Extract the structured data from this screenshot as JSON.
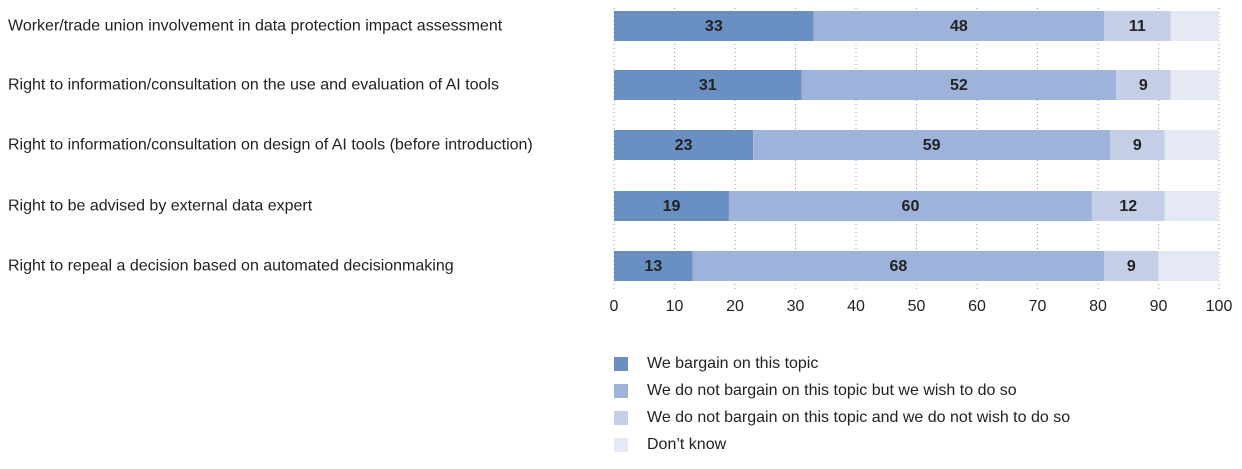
{
  "chart_data": {
    "type": "stacked-bar-horizontal",
    "categories": [
      "Worker/trade union involvement in data protection impact assessment",
      "Right to information/consultation on the use and evaluation of AI tools",
      "Right to information/consultation on design of AI tools (before introduction)",
      "Right to be advised by external data expert",
      "Right to repeal a decision based on automated decisionmaking"
    ],
    "series": [
      {
        "name": "We bargain on this topic",
        "color": "#6a8fc3",
        "values": [
          33,
          31,
          23,
          19,
          13
        ]
      },
      {
        "name": "We do not bargain on this topic but we wish to do so",
        "color": "#9db3da",
        "values": [
          48,
          52,
          59,
          60,
          68
        ]
      },
      {
        "name": "We do not bargain on this topic and we do not wish to do so",
        "color": "#c4cee7",
        "values": [
          11,
          9,
          9,
          12,
          9
        ]
      },
      {
        "name": "Don’t know",
        "color": "#e4e9f4",
        "values": [
          8,
          8,
          9,
          9,
          10
        ],
        "labels_shown": false
      }
    ],
    "xlim": [
      0,
      100
    ],
    "xticks": [
      0,
      10,
      20,
      30,
      40,
      50,
      60,
      70,
      80,
      90,
      100
    ],
    "grid": true
  }
}
